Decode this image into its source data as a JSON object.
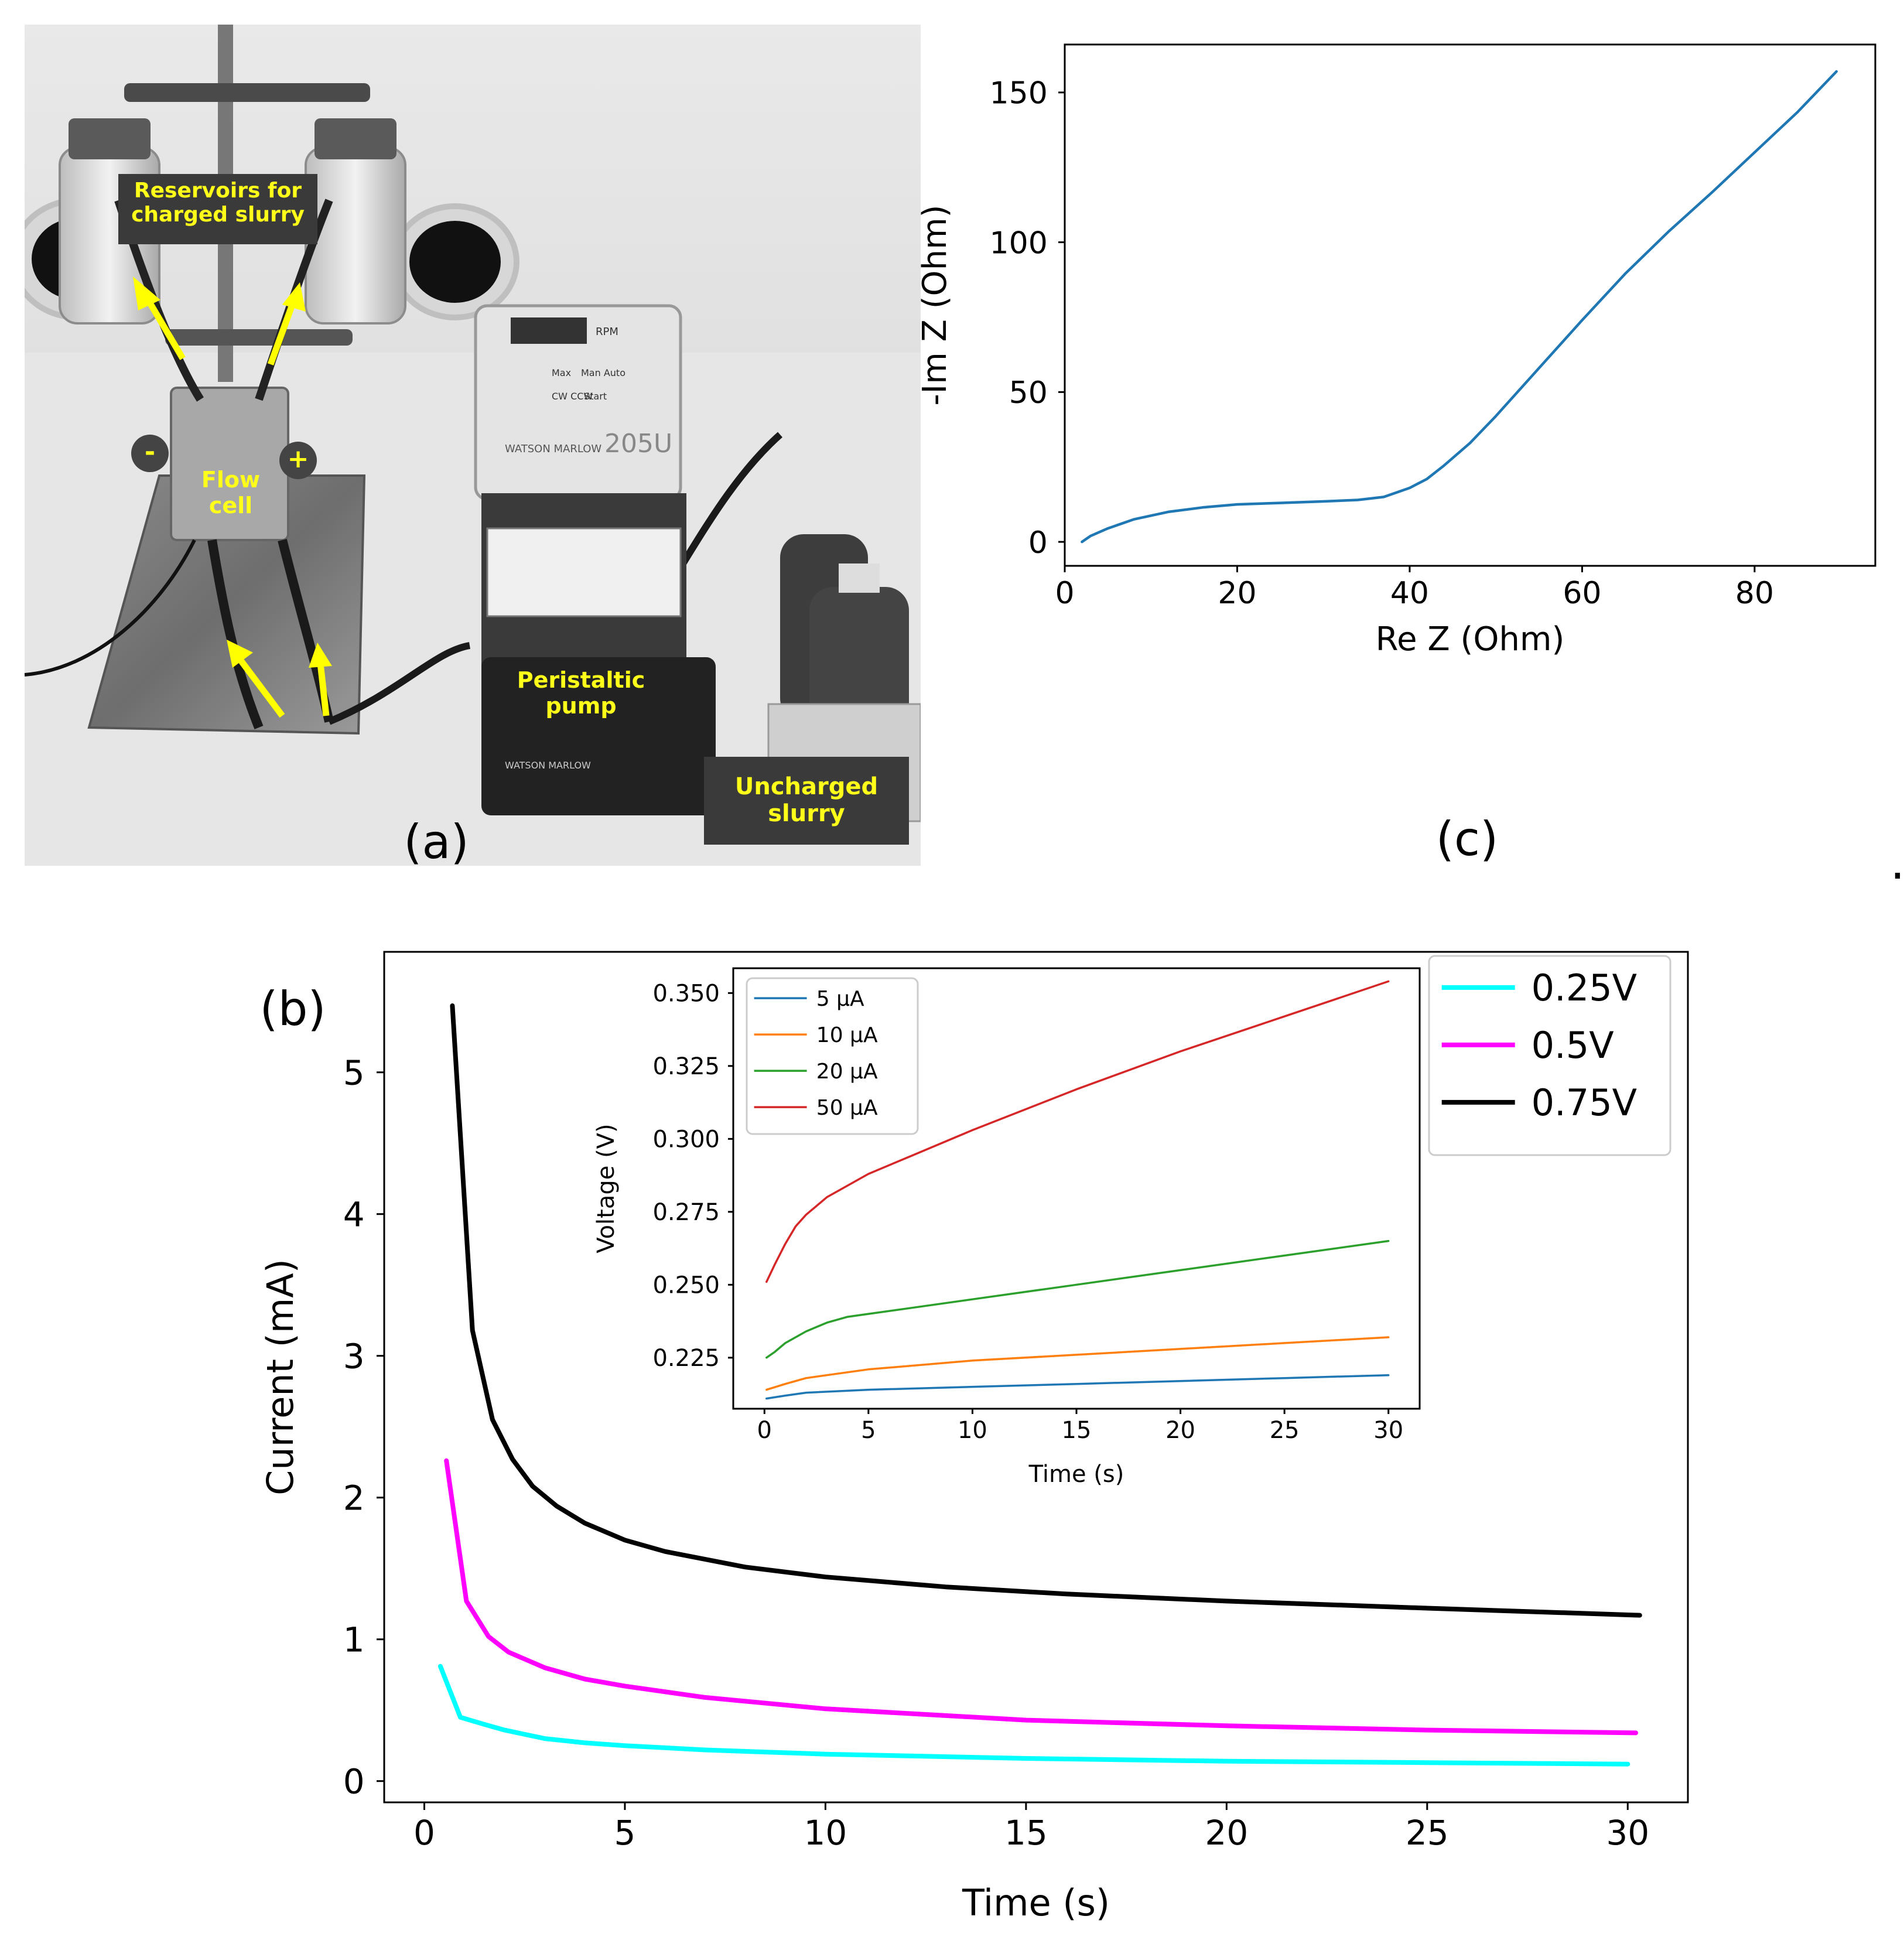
{
  "figure": {
    "panel_a": {
      "label": "(a)",
      "callouts": {
        "reservoirs": "Reservoirs for charged slurry",
        "flow_cell": "Flow cell",
        "pump": "Peristaltic pump",
        "uncharged": "Uncharged slurry",
        "minus": "-",
        "plus": "+"
      },
      "device_text": {
        "model": "205U",
        "brand": "WATSON MARLOW",
        "rpm": "RPM",
        "buttons": [
          "Max",
          "Man Auto",
          "CW CCW",
          "Start"
        ]
      }
    },
    "panel_c_label": "(c)",
    "panel_b_label": "(b)",
    "stray_mark": "."
  },
  "chart_data": [
    {
      "id": "c",
      "type": "line",
      "xlabel": "Re Z (Ohm)",
      "ylabel": "-Im Z (Ohm)",
      "xlim": [
        0,
        94
      ],
      "ylim": [
        -8,
        166
      ],
      "xticks": [
        0,
        20,
        40,
        60,
        80
      ],
      "yticks": [
        0,
        50,
        100,
        150
      ],
      "grid": false,
      "series": [
        {
          "color": "#1f77b4",
          "x": [
            2,
            3,
            5,
            8,
            12,
            16,
            20,
            25,
            30,
            34,
            37,
            40,
            42,
            44,
            47,
            50,
            55,
            60,
            65,
            70,
            75,
            80,
            85,
            89.5
          ],
          "y": [
            0,
            2,
            4.5,
            7.5,
            10,
            11.5,
            12.5,
            13,
            13.5,
            14,
            15,
            18,
            21,
            25.5,
            33,
            42,
            58,
            74,
            89.5,
            103.5,
            116.5,
            130,
            143.5,
            157
          ]
        }
      ]
    },
    {
      "id": "b",
      "type": "line",
      "xlabel": "Time (s)",
      "ylabel": "Current (mA)",
      "xlim": [
        -1,
        31.5
      ],
      "ylim": [
        -0.15,
        5.85
      ],
      "xticks": [
        0,
        5,
        10,
        15,
        20,
        25,
        30
      ],
      "yticks": [
        0,
        1,
        2,
        3,
        4,
        5
      ],
      "grid": false,
      "legend": "top-right",
      "series": [
        {
          "name": "0.25V",
          "color": "#00ffff",
          "x": [
            0.4,
            0.9,
            1.5,
            2,
            3,
            4,
            5,
            7,
            10,
            15,
            20,
            25,
            30
          ],
          "y": [
            0.81,
            0.45,
            0.4,
            0.36,
            0.3,
            0.27,
            0.25,
            0.22,
            0.19,
            0.16,
            0.14,
            0.13,
            0.12
          ]
        },
        {
          "name": "0.5V",
          "color": "#ff00ff",
          "x": [
            0.55,
            1.05,
            1.6,
            2.1,
            3,
            4,
            5,
            7,
            10,
            15,
            20,
            25,
            30.2
          ],
          "y": [
            2.26,
            1.27,
            1.02,
            0.91,
            0.8,
            0.72,
            0.67,
            0.59,
            0.51,
            0.43,
            0.39,
            0.36,
            0.34
          ]
        },
        {
          "name": "0.75V",
          "color": "#000000",
          "x": [
            0.7,
            1.2,
            1.7,
            2.2,
            2.7,
            3.3,
            4,
            5,
            6,
            8,
            10,
            13,
            16,
            20,
            25,
            30.3
          ],
          "y": [
            5.47,
            3.18,
            2.55,
            2.27,
            2.08,
            1.94,
            1.82,
            1.7,
            1.62,
            1.51,
            1.44,
            1.37,
            1.32,
            1.27,
            1.22,
            1.17
          ]
        }
      ]
    },
    {
      "id": "b-inset",
      "type": "line",
      "xlabel": "Time (s)",
      "ylabel": "Voltage (V)",
      "xlim": [
        -1.5,
        31.5
      ],
      "ylim": [
        0.2075,
        0.3585
      ],
      "xticks": [
        0,
        5,
        10,
        15,
        20,
        25,
        30
      ],
      "yticks": [
        0.225,
        0.25,
        0.275,
        0.3,
        0.325,
        0.35
      ],
      "ytick_labels": [
        "0.225",
        "0.250",
        "0.275",
        "0.300",
        "0.325",
        "0.350"
      ],
      "grid": false,
      "legend": "top-left",
      "series": [
        {
          "name": "5 µA",
          "color": "#1f77b4",
          "x": [
            0.1,
            1,
            2,
            5,
            10,
            15,
            20,
            25,
            30
          ],
          "y": [
            0.211,
            0.212,
            0.213,
            0.214,
            0.215,
            0.216,
            0.217,
            0.218,
            0.219
          ]
        },
        {
          "name": "10 µA",
          "color": "#ff7f0e",
          "x": [
            0.1,
            1,
            2,
            3,
            5,
            10,
            15,
            20,
            25,
            30
          ],
          "y": [
            0.214,
            0.216,
            0.218,
            0.219,
            0.221,
            0.224,
            0.226,
            0.228,
            0.23,
            0.232
          ]
        },
        {
          "name": "20 µA",
          "color": "#2ca02c",
          "x": [
            0.1,
            0.5,
            1,
            1.5,
            2,
            3,
            4,
            5,
            7,
            10,
            15,
            20,
            25,
            30
          ],
          "y": [
            0.225,
            0.227,
            0.23,
            0.232,
            0.234,
            0.237,
            0.239,
            0.24,
            0.242,
            0.245,
            0.25,
            0.255,
            0.26,
            0.265
          ]
        },
        {
          "name": "50 µA",
          "color": "#d62728",
          "x": [
            0.1,
            0.5,
            1,
            1.5,
            2,
            2.5,
            3,
            4,
            5,
            7,
            10,
            15,
            20,
            25,
            30
          ],
          "y": [
            0.251,
            0.257,
            0.264,
            0.27,
            0.274,
            0.277,
            0.28,
            0.284,
            0.288,
            0.294,
            0.303,
            0.317,
            0.33,
            0.342,
            0.354
          ]
        }
      ]
    }
  ]
}
